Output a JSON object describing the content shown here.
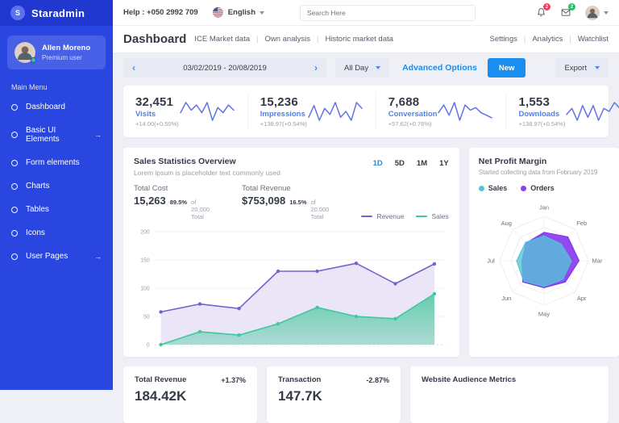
{
  "colors": {
    "sidebar_blue": "#2946e1",
    "accent_blue": "#1a8df0",
    "stat_label_blue": "#4d82f2",
    "spark_line": "#6372e6",
    "badge_red": "#f43f5e",
    "badge_green": "#22c55e"
  },
  "sidebar": {
    "logo": {
      "initial": "S",
      "text": "Staradmin"
    },
    "profile": {
      "name": "Allen Moreno",
      "role": "Premium user"
    },
    "menu_label": "Main Menu",
    "items": [
      {
        "label": "Dashboard",
        "has_submenu": false
      },
      {
        "label": "Basic UI Elements",
        "has_submenu": true
      },
      {
        "label": "Form elements",
        "has_submenu": false
      },
      {
        "label": "Charts",
        "has_submenu": false
      },
      {
        "label": "Tables",
        "has_submenu": false
      },
      {
        "label": "Icons",
        "has_submenu": false
      },
      {
        "label": "User Pages",
        "has_submenu": true
      }
    ],
    "submenu_arrow": "→"
  },
  "topbar": {
    "help_text": "Help : +050 2992 709",
    "language": "English",
    "search_placeholder": "Search Here",
    "notifications_count": "2",
    "messages_count": "2"
  },
  "page_header": {
    "title": "Dashboard",
    "links": [
      "ICE Market data",
      "Own analysis",
      "Historic market data"
    ],
    "right_links": [
      "Settings",
      "Analytics",
      "Watchlist"
    ]
  },
  "toolbar": {
    "date_range": "03/02/2019 - 20/08/2019",
    "prev_arrow": "‹",
    "next_arrow": "›",
    "day_filter": "All Day",
    "advanced_options_label": "Advanced Options",
    "new_button_label": "New",
    "export_label": "Export"
  },
  "stats": [
    {
      "value": "32,451",
      "label": "Visits",
      "delta": "+14.00(+0.50%)",
      "spark": [
        5,
        9,
        6,
        8,
        5,
        9,
        2,
        7,
        5,
        8,
        6
      ]
    },
    {
      "value": "15,236",
      "label": "Impressions",
      "delta": "+138.97(+0.54%)",
      "spark": [
        4,
        8,
        3,
        7,
        5,
        9,
        4,
        6,
        3,
        9,
        7
      ]
    },
    {
      "value": "7,688",
      "label": "Conversation",
      "delta": "+57.62(+0.76%)",
      "spark": [
        5,
        8,
        4,
        9,
        2,
        8,
        6,
        7,
        5,
        4,
        3
      ]
    },
    {
      "value": "1,553",
      "label": "Downloads",
      "delta": "+138.97(+0.54%)",
      "spark": [
        5,
        7,
        3,
        8,
        4,
        8,
        3,
        7,
        6,
        9,
        7
      ]
    }
  ],
  "sales_card": {
    "title": "Sales Statistics Overview",
    "subtitle": "Lorem ipsum is placeholder text commonly used",
    "range_tabs": [
      "1D",
      "5D",
      "1M",
      "1Y"
    ],
    "active_tab": "1D",
    "total_cost": {
      "label": "Total Cost",
      "value": "15,263",
      "note_pct": "89.5%",
      "note_rest": "of 20,000 Total"
    },
    "total_revenue": {
      "label": "Total Revenue",
      "value": "$753,098",
      "note_pct": "16.5%",
      "note_rest": "of 20,000 Total"
    }
  },
  "radar_card": {
    "title": "Net Profit Margin",
    "subtitle": "Started collecting data from February 2019"
  },
  "bottom_cards": [
    {
      "title": "Total Revenue",
      "delta": "+1.37%",
      "value": "184.42K"
    },
    {
      "title": "Transaction",
      "delta": "-2.87%",
      "value": "147.7K"
    },
    {
      "title": "Website Audience Metrics"
    }
  ],
  "chart_data": [
    {
      "type": "line",
      "name": "sales-statistics-overview",
      "title": "Sales Statistics Overview",
      "x": [
        1,
        2,
        3,
        4,
        5,
        6,
        7,
        8
      ],
      "series": [
        {
          "name": "Revenue",
          "color": "#7a5fd0",
          "fill": "#e9e5f7",
          "values": [
            58,
            72,
            64,
            130,
            130,
            144,
            108,
            143
          ]
        },
        {
          "name": "Sales",
          "color": "#3fc79f",
          "fill": "#4fc9a0",
          "values": [
            0,
            23,
            17,
            37,
            66,
            50,
            46,
            90
          ]
        }
      ],
      "xlabel": "",
      "ylabel": "",
      "ylim": [
        0,
        200
      ],
      "yticks": [
        0,
        50,
        100,
        150,
        200
      ],
      "grid": true,
      "legend_position": "top-right"
    },
    {
      "type": "radar",
      "name": "net-profit-margin",
      "title": "Net Profit Margin",
      "categories": [
        "Jan",
        "Feb",
        "Mar",
        "Apr",
        "May",
        "Jun",
        "Jul",
        "Aug"
      ],
      "series": [
        {
          "name": "Orders",
          "color": "#8b3ff0",
          "values": [
            64,
            76,
            79,
            68,
            61,
            68,
            50,
            57
          ]
        },
        {
          "name": "Sales",
          "color": "#54c5d8",
          "values": [
            56,
            54,
            62,
            60,
            58,
            65,
            62,
            59
          ]
        }
      ],
      "rlim": [
        0,
        100
      ],
      "grid": true,
      "legend_position": "top-left"
    }
  ]
}
